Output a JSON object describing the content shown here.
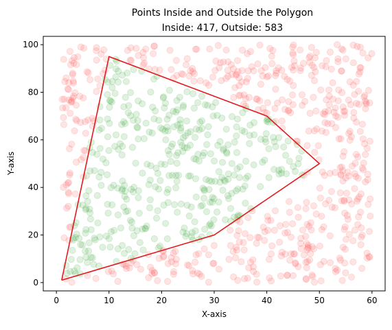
{
  "chart_data": {
    "type": "scatter",
    "title": "Points Inside and Outside the Polygon",
    "subtitle": "Inside: 417, Outside: 583",
    "xlabel": "X-axis",
    "ylabel": "Y-axis",
    "xlim": [
      -2.5,
      62.5
    ],
    "ylim": [
      -3.5,
      103.5
    ],
    "xticks": [
      0,
      10,
      20,
      30,
      40,
      50,
      60
    ],
    "yticks": [
      0,
      20,
      40,
      60,
      80,
      100
    ],
    "grid": false,
    "colors": {
      "inside": "#2ca02c",
      "outside": "#ff4d4d",
      "polygon": "#e31a1c",
      "point_alpha": 0.15
    },
    "polygon": {
      "x": [
        1,
        10,
        40,
        50,
        30,
        1
      ],
      "y": [
        1,
        95,
        70,
        50,
        20,
        1
      ]
    },
    "points": {
      "inside_count": 417,
      "outside_count": 583,
      "x_range": [
        1,
        60
      ],
      "y_range": [
        0,
        100
      ]
    }
  }
}
